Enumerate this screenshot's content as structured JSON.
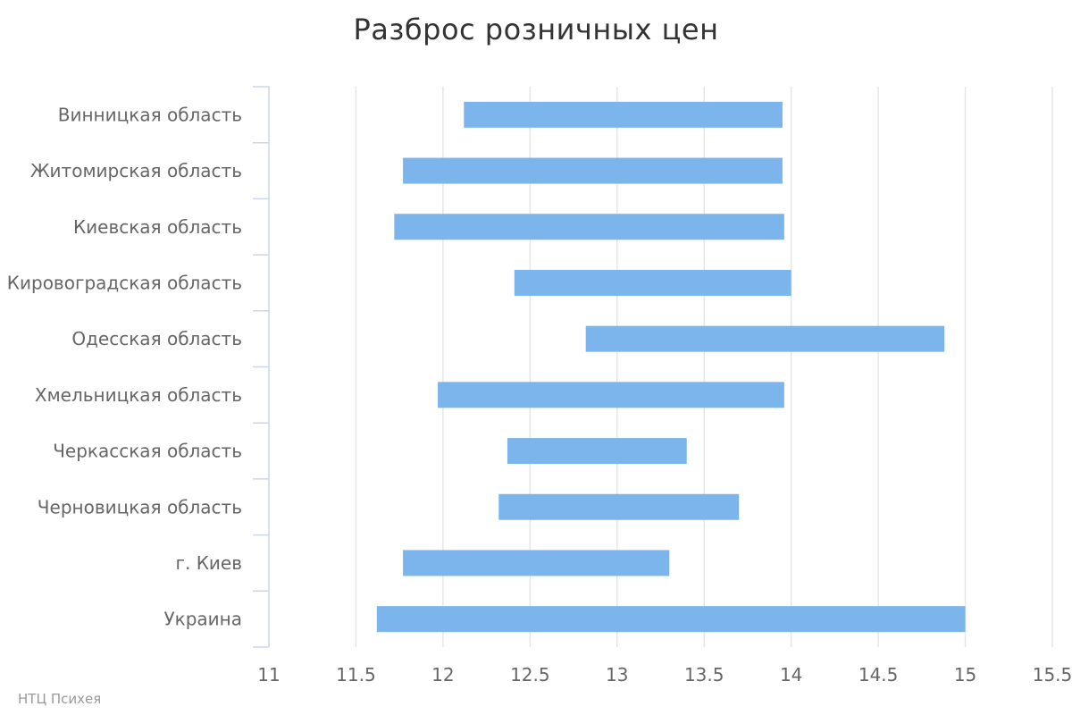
{
  "chart_data": {
    "type": "bar",
    "subtype": "columnrange-horizontal",
    "title": "Разброс розничных цен",
    "categories": [
      "Винницкая область",
      "Житомирская область",
      "Киевская область",
      "Кировоградская область",
      "Одесская область",
      "Хмельницкая область",
      "Черкасская область",
      "Черновицкая область",
      "г. Киев",
      "Украина"
    ],
    "ranges": [
      [
        12.12,
        13.95
      ],
      [
        11.77,
        13.95
      ],
      [
        11.72,
        13.96
      ],
      [
        12.41,
        14.0
      ],
      [
        12.82,
        14.88
      ],
      [
        11.97,
        13.96
      ],
      [
        12.37,
        13.4
      ],
      [
        12.32,
        13.7
      ],
      [
        11.77,
        13.3
      ],
      [
        11.62,
        15.0
      ]
    ],
    "xlim": [
      11,
      15.5
    ],
    "ticks": [
      "11",
      "11.5",
      "12",
      "12.5",
      "13",
      "13.5",
      "14",
      "14.5",
      "15",
      "15.5"
    ],
    "grid": true,
    "legend": "none",
    "bar_color": "#7cb5ec",
    "grid_color": "#e6e6e6",
    "axis_color": "#ccd6eb"
  },
  "credits": "НТЦ Психея"
}
